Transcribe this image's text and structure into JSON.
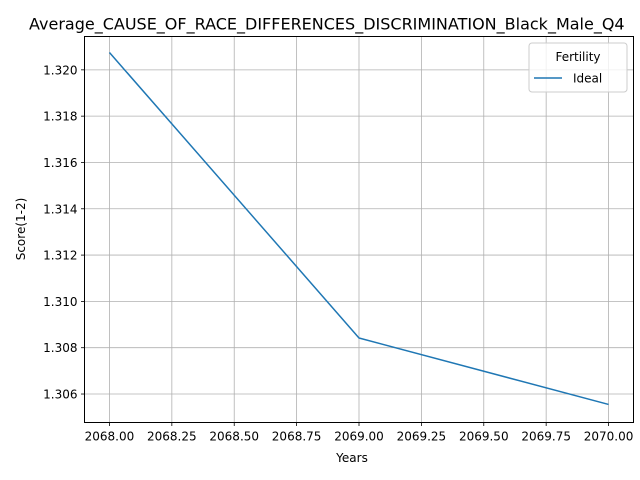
{
  "chart_data": {
    "type": "line",
    "title": "Average_CAUSE_OF_RACE_DIFFERENCES_DISCRIMINATION_Black_Male_Q4",
    "xlabel": "Years",
    "ylabel": "Score(1-2)",
    "xlim": [
      2067.9,
      2070.1
    ],
    "ylim": [
      1.30477,
      1.32144
    ],
    "x_ticks": [
      "2068.00",
      "2068.25",
      "2068.50",
      "2068.75",
      "2069.00",
      "2069.25",
      "2069.50",
      "2069.75",
      "2070.00"
    ],
    "y_ticks": [
      "1.306",
      "1.308",
      "1.310",
      "1.312",
      "1.314",
      "1.316",
      "1.318",
      "1.320"
    ],
    "grid": true,
    "legend": {
      "title": "Fertility",
      "placement": "top-right"
    },
    "series": [
      {
        "name": "Ideal",
        "color": "#1f77b4",
        "x": [
          2068,
          2069,
          2070
        ],
        "y": [
          1.32075,
          1.30842,
          1.30555
        ]
      }
    ]
  }
}
